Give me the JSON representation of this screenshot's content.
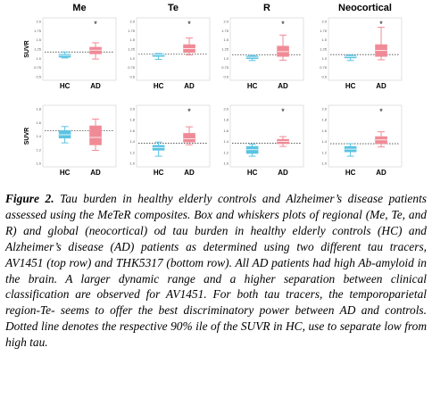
{
  "chart_data": [
    {
      "type": "box",
      "title": "Me",
      "ylabel": "SUVR",
      "categories": [
        "HC",
        "AD"
      ],
      "ylim": [
        0.5,
        2.0
      ],
      "yticks": [
        "0.5",
        "0.75",
        "1.0",
        "1.25",
        "1.5",
        "1.75",
        "2.0"
      ],
      "threshold": 1.17,
      "boxes": [
        {
          "label": "HC",
          "color": "#5bc3e2",
          "min": 1.01,
          "q1": 1.03,
          "median": 1.08,
          "q3": 1.11,
          "max": 1.17
        },
        {
          "label": "AD",
          "color": "#f08a96",
          "min": 0.98,
          "q1": 1.12,
          "median": 1.22,
          "q3": 1.3,
          "max": 1.42
        }
      ],
      "annotation": "*"
    },
    {
      "type": "box",
      "title": "Te",
      "ylabel": "",
      "categories": [
        "HC",
        "AD"
      ],
      "ylim": [
        0.5,
        2.0
      ],
      "yticks": [
        "0.5",
        "0.75",
        "1.0",
        "1.25",
        "1.5",
        "1.75",
        "2.0"
      ],
      "threshold": 1.11,
      "boxes": [
        {
          "label": "HC",
          "color": "#5bc3e2",
          "min": 0.97,
          "q1": 1.05,
          "median": 1.09,
          "q3": 1.11,
          "max": 1.13
        },
        {
          "label": "AD",
          "color": "#f08a96",
          "min": 1.09,
          "q1": 1.16,
          "median": 1.26,
          "q3": 1.37,
          "max": 1.55
        }
      ],
      "annotation": "*"
    },
    {
      "type": "box",
      "title": "R",
      "ylabel": "",
      "categories": [
        "HC",
        "AD"
      ],
      "ylim": [
        0.5,
        2.0
      ],
      "yticks": [
        "0.5",
        "0.75",
        "1.0",
        "1.25",
        "1.5",
        "1.75",
        "2.0"
      ],
      "threshold": 1.09,
      "boxes": [
        {
          "label": "HC",
          "color": "#5bc3e2",
          "min": 0.94,
          "q1": 0.99,
          "median": 1.03,
          "q3": 1.06,
          "max": 1.08
        },
        {
          "label": "AD",
          "color": "#f08a96",
          "min": 0.95,
          "q1": 1.05,
          "median": 1.18,
          "q3": 1.33,
          "max": 1.63
        }
      ],
      "annotation": "*"
    },
    {
      "type": "box",
      "title": "Neocortical",
      "ylabel": "",
      "categories": [
        "HC",
        "AD"
      ],
      "ylim": [
        0.5,
        2.0
      ],
      "yticks": [
        "0.5",
        "0.75",
        "1.0",
        "1.25",
        "1.5",
        "1.75",
        "2.0"
      ],
      "threshold": 1.1,
      "boxes": [
        {
          "label": "HC",
          "color": "#5bc3e2",
          "min": 0.94,
          "q1": 1.01,
          "median": 1.05,
          "q3": 1.07,
          "max": 1.09
        },
        {
          "label": "AD",
          "color": "#f08a96",
          "min": 0.96,
          "q1": 1.05,
          "median": 1.21,
          "q3": 1.37,
          "max": 1.84
        }
      ],
      "annotation": "*"
    },
    {
      "type": "box",
      "title": "",
      "ylabel": "SUVR",
      "categories": [
        "HC",
        "AD"
      ],
      "ylim": [
        1.0,
        1.8
      ],
      "yticks": [
        "1.0",
        "1.2",
        "1.4",
        "1.6",
        "1.8"
      ],
      "threshold": 1.48,
      "boxes": [
        {
          "label": "HC",
          "color": "#5bc3e2",
          "min": 1.3,
          "q1": 1.37,
          "median": 1.42,
          "q3": 1.48,
          "max": 1.54
        },
        {
          "label": "AD",
          "color": "#f08a96",
          "min": 1.19,
          "q1": 1.27,
          "median": 1.38,
          "q3": 1.55,
          "max": 1.65
        }
      ],
      "annotation": ""
    },
    {
      "type": "box",
      "title": "",
      "ylabel": "",
      "categories": [
        "HC",
        "AD"
      ],
      "ylim": [
        1.0,
        2.0
      ],
      "yticks": [
        "1.0",
        "1.2",
        "1.4",
        "1.6",
        "1.8",
        "2.0"
      ],
      "threshold": 1.37,
      "boxes": [
        {
          "label": "HC",
          "color": "#5bc3e2",
          "min": 1.13,
          "q1": 1.24,
          "median": 1.29,
          "q3": 1.33,
          "max": 1.39
        },
        {
          "label": "AD",
          "color": "#f08a96",
          "min": 1.34,
          "q1": 1.39,
          "median": 1.45,
          "q3": 1.55,
          "max": 1.67
        }
      ],
      "annotation": "*"
    },
    {
      "type": "box",
      "title": "",
      "ylabel": "",
      "categories": [
        "HC",
        "AD"
      ],
      "ylim": [
        1.0,
        2.0
      ],
      "yticks": [
        "1.0",
        "1.2",
        "1.4",
        "1.6",
        "1.8",
        "2.0"
      ],
      "threshold": 1.37,
      "boxes": [
        {
          "label": "HC",
          "color": "#5bc3e2",
          "min": 1.13,
          "q1": 1.18,
          "median": 1.25,
          "q3": 1.31,
          "max": 1.35
        },
        {
          "label": "AD",
          "color": "#f08a96",
          "min": 1.31,
          "q1": 1.36,
          "median": 1.4,
          "q3": 1.44,
          "max": 1.49
        }
      ],
      "annotation": "*"
    },
    {
      "type": "box",
      "title": "",
      "ylabel": "",
      "categories": [
        "HC",
        "AD"
      ],
      "ylim": [
        1.0,
        2.0
      ],
      "yticks": [
        "1.0",
        "1.2",
        "1.4",
        "1.6",
        "1.8",
        "2.0"
      ],
      "threshold": 1.36,
      "boxes": [
        {
          "label": "HC",
          "color": "#5bc3e2",
          "min": 1.13,
          "q1": 1.21,
          "median": 1.26,
          "q3": 1.31,
          "max": 1.36
        },
        {
          "label": "AD",
          "color": "#f08a96",
          "min": 1.3,
          "q1": 1.36,
          "median": 1.43,
          "q3": 1.49,
          "max": 1.58
        }
      ],
      "annotation": "*"
    }
  ],
  "caption": {
    "label": "Figure 2.",
    "text": " Tau burden in healthy elderly controls and Alzheimer’s disease patients assessed using the MeTeR composites. Box and whiskers plots of regional (Me, Te, and R) and global (neocortical) od tau burden in healthy elderly controls (HC) and Alzheimer’s disease (AD) patients as determined using two different tau tracers, AV1451 (top row) and THK5317 (bottom row). All AD patients had high Ab-amyloid in the brain. A larger dynamic range and a higher separation between clinical classification are observed for AV1451. For both tau tracers, the temporoparietal region-Te- seems to offer the best discriminatory power between AD and controls. Dotted line denotes the respective 90% ile of the SUVR in HC, use to separate low from high tau."
  }
}
